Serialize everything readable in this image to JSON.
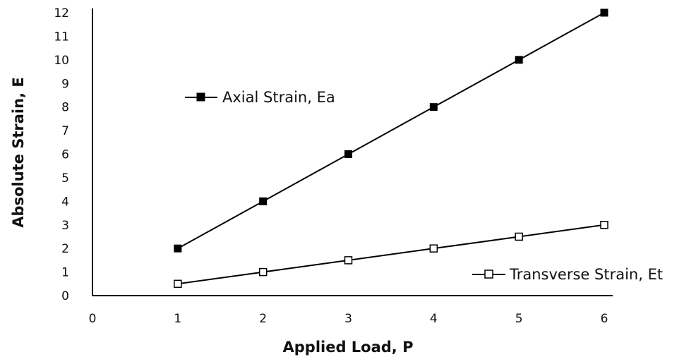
{
  "chart_data": {
    "type": "line",
    "title": "",
    "xlabel": "Applied Load, P",
    "ylabel": "Absolute Strain, E",
    "xlim": [
      0,
      6
    ],
    "ylim": [
      0,
      12
    ],
    "xticks": [
      "0",
      "1",
      "2",
      "3",
      "4",
      "5",
      "6"
    ],
    "yticks": [
      "0",
      "1",
      "2",
      "3",
      "4",
      "5",
      "6",
      "7",
      "8",
      "9",
      "10",
      "11",
      "12"
    ],
    "grid": false,
    "series": [
      {
        "name": "Axial Strain, Ea",
        "marker": "filled-square",
        "color": "#000000",
        "x": [
          1,
          2,
          3,
          4,
          5,
          6
        ],
        "y": [
          2,
          4,
          6,
          8,
          10,
          12
        ]
      },
      {
        "name": "Transverse Strain, Et",
        "marker": "open-square",
        "color": "#000000",
        "x": [
          1,
          2,
          3,
          4,
          5,
          6
        ],
        "y": [
          0.5,
          1,
          1.5,
          2,
          2.5,
          3
        ]
      }
    ]
  }
}
